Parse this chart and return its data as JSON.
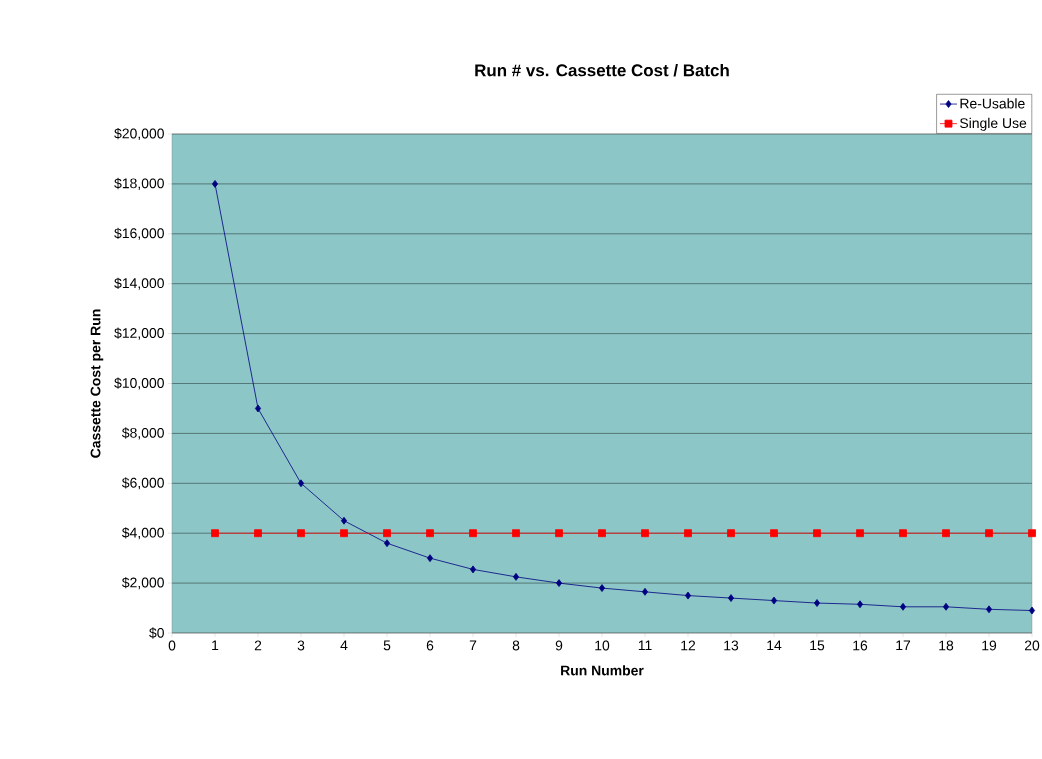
{
  "chart_data": {
    "type": "line",
    "title": "Run # vs. Cassette Cost / Batch",
    "xlabel": "Run Number",
    "ylabel": "Cassette Cost per Run",
    "x": [
      1,
      2,
      3,
      4,
      5,
      6,
      7,
      8,
      9,
      10,
      11,
      12,
      13,
      14,
      15,
      16,
      17,
      18,
      19,
      20
    ],
    "series": [
      {
        "name": "Re-Usable",
        "color": "#000080",
        "marker": "diamond",
        "values": [
          18000,
          9000,
          6000,
          4500,
          3600,
          3000,
          2550,
          2250,
          2000,
          1800,
          1650,
          1500,
          1400,
          1300,
          1200,
          1150,
          1050,
          1050,
          950,
          900
        ]
      },
      {
        "name": "Single Use",
        "color": "#ff0000",
        "marker": "square",
        "values": [
          4000,
          4000,
          4000,
          4000,
          4000,
          4000,
          4000,
          4000,
          4000,
          4000,
          4000,
          4000,
          4000,
          4000,
          4000,
          4000,
          4000,
          4000,
          4000,
          4000
        ]
      }
    ],
    "xlim": [
      0,
      20
    ],
    "xticks": [
      0,
      1,
      2,
      3,
      4,
      5,
      6,
      7,
      8,
      9,
      10,
      11,
      12,
      13,
      14,
      15,
      16,
      17,
      18,
      19,
      20
    ],
    "ylim": [
      0,
      20000
    ],
    "yticks": [
      {
        "value": 0,
        "label": "$0"
      },
      {
        "value": 2000,
        "label": "$2,000"
      },
      {
        "value": 4000,
        "label": "$4,000"
      },
      {
        "value": 6000,
        "label": "$6,000"
      },
      {
        "value": 8000,
        "label": "$8,000"
      },
      {
        "value": 10000,
        "label": "$10,000"
      },
      {
        "value": 12000,
        "label": "$12,000"
      },
      {
        "value": 14000,
        "label": "$14,000"
      },
      {
        "value": 16000,
        "label": "$16,000"
      },
      {
        "value": 18000,
        "label": "$18,000"
      },
      {
        "value": 20000,
        "label": "$20,000"
      }
    ],
    "grid": "y",
    "legend": "top right",
    "line_style": "solid"
  }
}
